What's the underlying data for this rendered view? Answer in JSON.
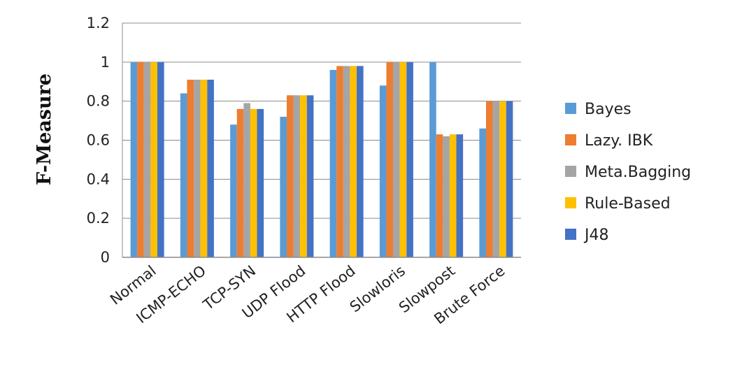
{
  "chart_data": {
    "type": "bar",
    "title": "",
    "xlabel": "",
    "ylabel": "F-Measure",
    "ylim": [
      0,
      1.2
    ],
    "yticks": [
      "0",
      "0.2",
      "0.4",
      "0.6",
      "0.8",
      "1",
      "1.2"
    ],
    "categories": [
      "Normal",
      "ICMP-ECHO",
      "TCP-SYN",
      "UDP Flood",
      "HTTP Flood",
      "Slowloris",
      "Slowpost",
      "Brute Force"
    ],
    "series": [
      {
        "name": "Bayes",
        "color": "#5B9BD5",
        "values": [
          1.0,
          0.84,
          0.68,
          0.72,
          0.96,
          0.88,
          1.0,
          0.66
        ]
      },
      {
        "name": "Lazy. IBK",
        "color": "#ED7D31",
        "values": [
          1.0,
          0.91,
          0.76,
          0.83,
          0.98,
          1.0,
          0.63,
          0.8
        ]
      },
      {
        "name": "Meta.Bagging",
        "color": "#A5A5A5",
        "values": [
          1.0,
          0.91,
          0.79,
          0.83,
          0.98,
          1.0,
          0.62,
          0.8
        ]
      },
      {
        "name": "Rule-Based",
        "color": "#FFC000",
        "values": [
          1.0,
          0.91,
          0.76,
          0.83,
          0.98,
          1.0,
          0.63,
          0.8
        ]
      },
      {
        "name": "J48",
        "color": "#4472C4",
        "values": [
          1.0,
          0.91,
          0.76,
          0.83,
          0.98,
          1.0,
          0.63,
          0.8
        ]
      }
    ],
    "grid": true,
    "legend_position": "right"
  }
}
